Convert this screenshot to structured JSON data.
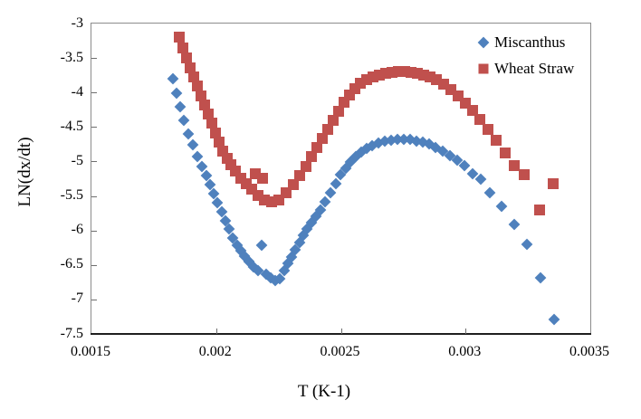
{
  "figure": {
    "background": "#ffffff",
    "axis_box_color": "#8c8c8c",
    "axis_line_color": "#1f1f1f",
    "text_color": "#000000"
  },
  "chart_data": {
    "type": "scatter",
    "title": "",
    "xlabel": "T (K-1)",
    "ylabel": "LN(dx/dt)",
    "xlim": [
      0.0015,
      0.0035
    ],
    "ylim": [
      -7.5,
      -3
    ],
    "x_ticks": [
      0.0015,
      0.002,
      0.0025,
      0.003,
      0.0035
    ],
    "x_tick_labels": [
      "0.0015",
      "0.002",
      "0.0025",
      "0.003",
      "0.0035"
    ],
    "y_ticks": [
      -3,
      -3.5,
      -4,
      -4.5,
      -5,
      -5.5,
      -6,
      -6.5,
      -7,
      -7.5
    ],
    "y_tick_labels": [
      "-3",
      "-3.5",
      "-4",
      "-4.5",
      "-5",
      "-5.5",
      "-6",
      "-6.5",
      "-7",
      "-7.5"
    ],
    "grid": false,
    "legend_position": "top-right-inside",
    "series": [
      {
        "name": "Miscanthus",
        "marker": "diamond",
        "color": "#4F81BD",
        "points": [
          [
            0.001827,
            -3.8
          ],
          [
            0.001841,
            -4.01
          ],
          [
            0.001856,
            -4.21
          ],
          [
            0.00187,
            -4.4
          ],
          [
            0.001888,
            -4.6
          ],
          [
            0.001907,
            -4.76
          ],
          [
            0.001925,
            -4.93
          ],
          [
            0.001943,
            -5.07
          ],
          [
            0.001961,
            -5.2
          ],
          [
            0.001976,
            -5.33
          ],
          [
            0.00199,
            -5.47
          ],
          [
            0.002005,
            -5.6
          ],
          [
            0.002023,
            -5.73
          ],
          [
            0.002037,
            -5.86
          ],
          [
            0.002052,
            -5.98
          ],
          [
            0.002066,
            -6.11
          ],
          [
            0.002084,
            -6.21
          ],
          [
            0.002099,
            -6.29
          ],
          [
            0.002113,
            -6.37
          ],
          [
            0.002132,
            -6.45
          ],
          [
            0.00215,
            -6.53
          ],
          [
            0.002168,
            -6.58
          ],
          [
            0.002182,
            -6.21
          ],
          [
            0.002201,
            -6.63
          ],
          [
            0.002219,
            -6.69
          ],
          [
            0.002237,
            -6.72
          ],
          [
            0.002255,
            -6.7
          ],
          [
            0.002273,
            -6.58
          ],
          [
            0.002288,
            -6.48
          ],
          [
            0.002302,
            -6.38
          ],
          [
            0.002317,
            -6.28
          ],
          [
            0.002335,
            -6.17
          ],
          [
            0.002349,
            -6.07
          ],
          [
            0.002364,
            -5.98
          ],
          [
            0.002382,
            -5.89
          ],
          [
            0.0024,
            -5.79
          ],
          [
            0.002418,
            -5.7
          ],
          [
            0.002437,
            -5.58
          ],
          [
            0.002458,
            -5.45
          ],
          [
            0.00248,
            -5.32
          ],
          [
            0.002498,
            -5.19
          ],
          [
            0.00252,
            -5.1
          ],
          [
            0.002538,
            -5.01
          ],
          [
            0.00256,
            -4.93
          ],
          [
            0.002582,
            -4.86
          ],
          [
            0.002603,
            -4.81
          ],
          [
            0.002625,
            -4.77
          ],
          [
            0.002651,
            -4.73
          ],
          [
            0.002676,
            -4.71
          ],
          [
            0.002701,
            -4.69
          ],
          [
            0.002727,
            -4.68
          ],
          [
            0.002752,
            -4.68
          ],
          [
            0.002778,
            -4.68
          ],
          [
            0.002803,
            -4.71
          ],
          [
            0.002828,
            -4.72
          ],
          [
            0.002854,
            -4.75
          ],
          [
            0.002879,
            -4.8
          ],
          [
            0.002908,
            -4.85
          ],
          [
            0.002937,
            -4.92
          ],
          [
            0.002966,
            -4.98
          ],
          [
            0.002996,
            -5.06
          ],
          [
            0.003028,
            -5.18
          ],
          [
            0.003061,
            -5.26
          ],
          [
            0.003097,
            -5.45
          ],
          [
            0.003144,
            -5.65
          ],
          [
            0.003195,
            -5.91
          ],
          [
            0.003246,
            -6.2
          ],
          [
            0.0033,
            -6.69
          ],
          [
            0.003355,
            -7.29
          ]
        ]
      },
      {
        "name": "Wheat Straw",
        "marker": "square",
        "color": "#C0504D",
        "points": [
          [
            0.001852,
            -3.2
          ],
          [
            0.001867,
            -3.35
          ],
          [
            0.001881,
            -3.5
          ],
          [
            0.001896,
            -3.64
          ],
          [
            0.00191,
            -3.77
          ],
          [
            0.001925,
            -3.91
          ],
          [
            0.001939,
            -4.05
          ],
          [
            0.001954,
            -4.18
          ],
          [
            0.001968,
            -4.31
          ],
          [
            0.001983,
            -4.44
          ],
          [
            0.001997,
            -4.59
          ],
          [
            0.002012,
            -4.72
          ],
          [
            0.002026,
            -4.85
          ],
          [
            0.002044,
            -4.95
          ],
          [
            0.002059,
            -5.05
          ],
          [
            0.002077,
            -5.14
          ],
          [
            0.002099,
            -5.24
          ],
          [
            0.002121,
            -5.32
          ],
          [
            0.002142,
            -5.4
          ],
          [
            0.002157,
            -5.18
          ],
          [
            0.002186,
            -5.24
          ],
          [
            0.002168,
            -5.49
          ],
          [
            0.002193,
            -5.56
          ],
          [
            0.002222,
            -5.58
          ],
          [
            0.002251,
            -5.56
          ],
          [
            0.00228,
            -5.45
          ],
          [
            0.002309,
            -5.34
          ],
          [
            0.002335,
            -5.2
          ],
          [
            0.00236,
            -5.07
          ],
          [
            0.002382,
            -4.93
          ],
          [
            0.002404,
            -4.8
          ],
          [
            0.002426,
            -4.67
          ],
          [
            0.002447,
            -4.54
          ],
          [
            0.002469,
            -4.4
          ],
          [
            0.002491,
            -4.27
          ],
          [
            0.002513,
            -4.14
          ],
          [
            0.002535,
            -4.04
          ],
          [
            0.002556,
            -3.94
          ],
          [
            0.002578,
            -3.87
          ],
          [
            0.002603,
            -3.81
          ],
          [
            0.002629,
            -3.77
          ],
          [
            0.002654,
            -3.75
          ],
          [
            0.00268,
            -3.72
          ],
          [
            0.002705,
            -3.71
          ],
          [
            0.00273,
            -3.7
          ],
          [
            0.002756,
            -3.7
          ],
          [
            0.002781,
            -3.71
          ],
          [
            0.002807,
            -3.72
          ],
          [
            0.002832,
            -3.75
          ],
          [
            0.002857,
            -3.77
          ],
          [
            0.002883,
            -3.81
          ],
          [
            0.002912,
            -3.88
          ],
          [
            0.002941,
            -3.96
          ],
          [
            0.00297,
            -4.05
          ],
          [
            0.002999,
            -4.15
          ],
          [
            0.003028,
            -4.26
          ],
          [
            0.003057,
            -4.39
          ],
          [
            0.00309,
            -4.54
          ],
          [
            0.003122,
            -4.69
          ],
          [
            0.003159,
            -4.88
          ],
          [
            0.003195,
            -5.06
          ],
          [
            0.003235,
            -5.19
          ],
          [
            0.003297,
            -5.7
          ],
          [
            0.003351,
            -5.32
          ]
        ]
      }
    ]
  }
}
